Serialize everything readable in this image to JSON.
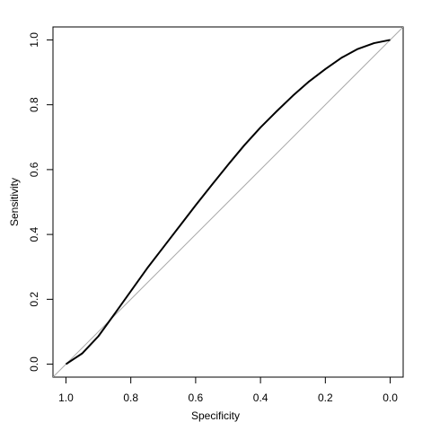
{
  "chart_data": {
    "type": "line",
    "x_label": "Specificity",
    "y_label": "Sensitivity",
    "x": [
      1.0,
      0.95,
      0.9,
      0.85,
      0.8,
      0.75,
      0.7,
      0.65,
      0.6,
      0.55,
      0.5,
      0.45,
      0.4,
      0.35,
      0.3,
      0.25,
      0.2,
      0.15,
      0.1,
      0.05,
      0.0
    ],
    "series": [
      {
        "color": "#000000",
        "values": [
          0.0,
          0.033,
          0.086,
          0.155,
          0.225,
          0.295,
          0.36,
          0.425,
          0.49,
          0.553,
          0.615,
          0.675,
          0.73,
          0.78,
          0.828,
          0.872,
          0.91,
          0.945,
          0.972,
          0.99,
          1.0
        ]
      }
    ],
    "xlim": [
      1.04,
      -0.04
    ],
    "ylim": [
      -0.04,
      1.04
    ],
    "xticks": [
      {
        "value": 1.0,
        "label": "1.0"
      },
      {
        "value": 0.8,
        "label": "0.8"
      },
      {
        "value": 0.6,
        "label": "0.6"
      },
      {
        "value": 0.4,
        "label": "0.4"
      },
      {
        "value": 0.2,
        "label": "0.2"
      },
      {
        "value": 0.0,
        "label": "0.0"
      }
    ],
    "yticks": [
      {
        "value": 0.0,
        "label": "0.0"
      },
      {
        "value": 0.2,
        "label": "0.2"
      },
      {
        "value": 0.4,
        "label": "0.4"
      },
      {
        "value": 0.6,
        "label": "0.6"
      },
      {
        "value": 0.8,
        "label": "0.8"
      },
      {
        "value": 1.0,
        "label": "1.0"
      }
    ],
    "reference_color": "#aaaaaa"
  }
}
